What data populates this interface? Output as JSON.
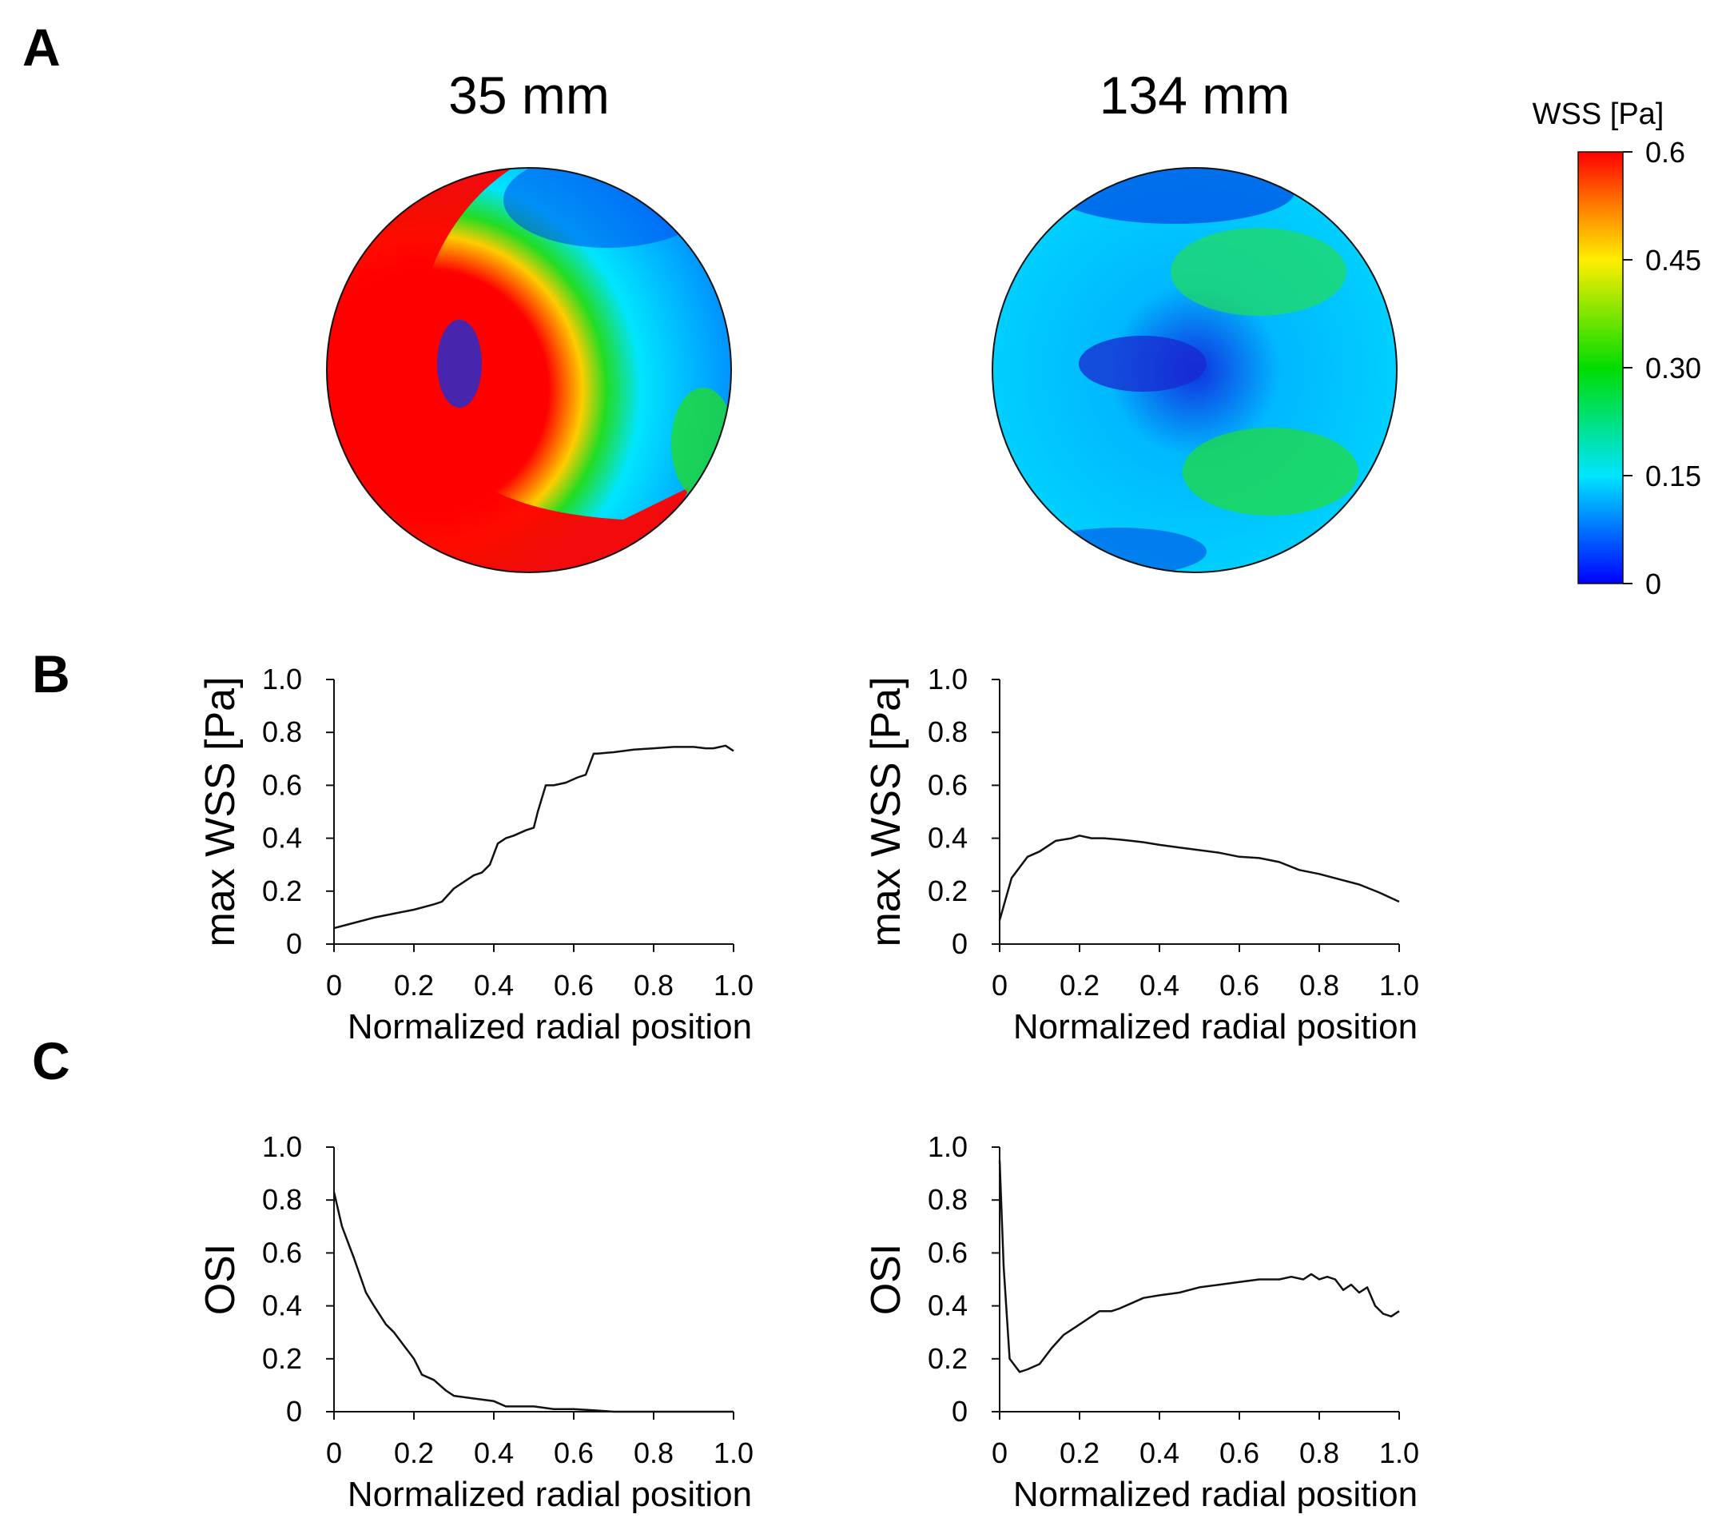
{
  "panels": {
    "a": {
      "letter": "A"
    },
    "b": {
      "letter": "B"
    },
    "c": {
      "letter": "C"
    }
  },
  "maps": {
    "left_title": "35 mm",
    "right_title": "134 mm"
  },
  "colorbar": {
    "title": "WSS [Pa]",
    "ticks": [
      "0.6",
      "0.45",
      "0.30",
      "0.15",
      "0"
    ],
    "colors": [
      "#ff0000",
      "#ffee00",
      "#00dd00",
      "#00e5ff",
      "#0000ff"
    ]
  },
  "chart_data": [
    {
      "id": "b-left",
      "type": "line",
      "panel": "B",
      "title": "35 mm",
      "xlabel": "Normalized radial position",
      "ylabel": "max WSS [Pa]",
      "xlim": [
        0,
        1.0
      ],
      "ylim": [
        0,
        1.0
      ],
      "xticks": [
        "0",
        "0.2",
        "0.4",
        "0.6",
        "0.8",
        "1.0"
      ],
      "yticks": [
        "0",
        "0.2",
        "0.4",
        "0.6",
        "0.8",
        "1.0"
      ],
      "x": [
        0,
        0.05,
        0.1,
        0.15,
        0.2,
        0.25,
        0.27,
        0.3,
        0.33,
        0.35,
        0.37,
        0.39,
        0.41,
        0.43,
        0.45,
        0.48,
        0.5,
        0.51,
        0.53,
        0.55,
        0.58,
        0.61,
        0.63,
        0.65,
        0.66,
        0.7,
        0.75,
        0.8,
        0.85,
        0.9,
        0.93,
        0.95,
        0.98,
        1.0
      ],
      "y": [
        0.06,
        0.08,
        0.1,
        0.115,
        0.13,
        0.15,
        0.16,
        0.21,
        0.24,
        0.26,
        0.27,
        0.3,
        0.38,
        0.4,
        0.41,
        0.43,
        0.44,
        0.5,
        0.6,
        0.6,
        0.61,
        0.63,
        0.64,
        0.72,
        0.72,
        0.725,
        0.735,
        0.74,
        0.745,
        0.745,
        0.74,
        0.74,
        0.75,
        0.73
      ]
    },
    {
      "id": "b-right",
      "type": "line",
      "panel": "B",
      "title": "134 mm",
      "xlabel": "Normalized radial position",
      "ylabel": "max WSS [Pa]",
      "xlim": [
        0,
        1.0
      ],
      "ylim": [
        0,
        1.0
      ],
      "xticks": [
        "0",
        "0.2",
        "0.4",
        "0.6",
        "0.8",
        "1.0"
      ],
      "yticks": [
        "0",
        "0.2",
        "0.4",
        "0.6",
        "0.8",
        "1.0"
      ],
      "x": [
        0,
        0.03,
        0.07,
        0.1,
        0.14,
        0.18,
        0.2,
        0.23,
        0.26,
        0.3,
        0.33,
        0.36,
        0.4,
        0.45,
        0.5,
        0.55,
        0.6,
        0.65,
        0.7,
        0.75,
        0.8,
        0.85,
        0.9,
        0.95,
        1.0
      ],
      "y": [
        0.09,
        0.25,
        0.33,
        0.35,
        0.39,
        0.4,
        0.41,
        0.4,
        0.4,
        0.395,
        0.39,
        0.385,
        0.375,
        0.365,
        0.355,
        0.345,
        0.33,
        0.325,
        0.31,
        0.28,
        0.265,
        0.245,
        0.225,
        0.195,
        0.16
      ]
    },
    {
      "id": "c-left",
      "type": "line",
      "panel": "C",
      "title": "35 mm",
      "xlabel": "Normalized radial position",
      "ylabel": "OSI",
      "xlim": [
        0,
        1.0
      ],
      "ylim": [
        0,
        1.0
      ],
      "xticks": [
        "0",
        "0.2",
        "0.4",
        "0.6",
        "0.8",
        "1.0"
      ],
      "yticks": [
        "0",
        "0.2",
        "0.4",
        "0.6",
        "0.8",
        "1.0"
      ],
      "x": [
        0,
        0.02,
        0.05,
        0.08,
        0.1,
        0.13,
        0.15,
        0.18,
        0.2,
        0.22,
        0.25,
        0.28,
        0.3,
        0.35,
        0.4,
        0.43,
        0.5,
        0.55,
        0.6,
        0.65,
        0.7,
        0.8,
        0.9,
        1.0
      ],
      "y": [
        0.83,
        0.7,
        0.58,
        0.45,
        0.4,
        0.33,
        0.3,
        0.24,
        0.2,
        0.14,
        0.12,
        0.08,
        0.06,
        0.05,
        0.04,
        0.02,
        0.02,
        0.01,
        0.01,
        0.005,
        0,
        0,
        0,
        0
      ]
    },
    {
      "id": "c-right",
      "type": "line",
      "panel": "C",
      "title": "134 mm",
      "xlabel": "Normalized radial position",
      "ylabel": "OSI",
      "xlim": [
        0,
        1.0
      ],
      "ylim": [
        0,
        1.0
      ],
      "xticks": [
        "0",
        "0.2",
        "0.4",
        "0.6",
        "0.8",
        "1.0"
      ],
      "yticks": [
        "0",
        "0.2",
        "0.4",
        "0.6",
        "0.8",
        "1.0"
      ],
      "x": [
        0,
        0.01,
        0.025,
        0.05,
        0.07,
        0.1,
        0.13,
        0.16,
        0.18,
        0.2,
        0.23,
        0.25,
        0.28,
        0.3,
        0.33,
        0.36,
        0.4,
        0.45,
        0.5,
        0.55,
        0.6,
        0.65,
        0.7,
        0.73,
        0.76,
        0.78,
        0.8,
        0.82,
        0.84,
        0.86,
        0.88,
        0.9,
        0.92,
        0.94,
        0.96,
        0.98,
        1.0
      ],
      "y": [
        0.95,
        0.55,
        0.2,
        0.15,
        0.16,
        0.18,
        0.24,
        0.29,
        0.31,
        0.33,
        0.36,
        0.38,
        0.38,
        0.39,
        0.41,
        0.43,
        0.44,
        0.45,
        0.47,
        0.48,
        0.49,
        0.5,
        0.5,
        0.51,
        0.5,
        0.52,
        0.5,
        0.51,
        0.5,
        0.46,
        0.48,
        0.45,
        0.47,
        0.4,
        0.37,
        0.36,
        0.38
      ]
    }
  ]
}
